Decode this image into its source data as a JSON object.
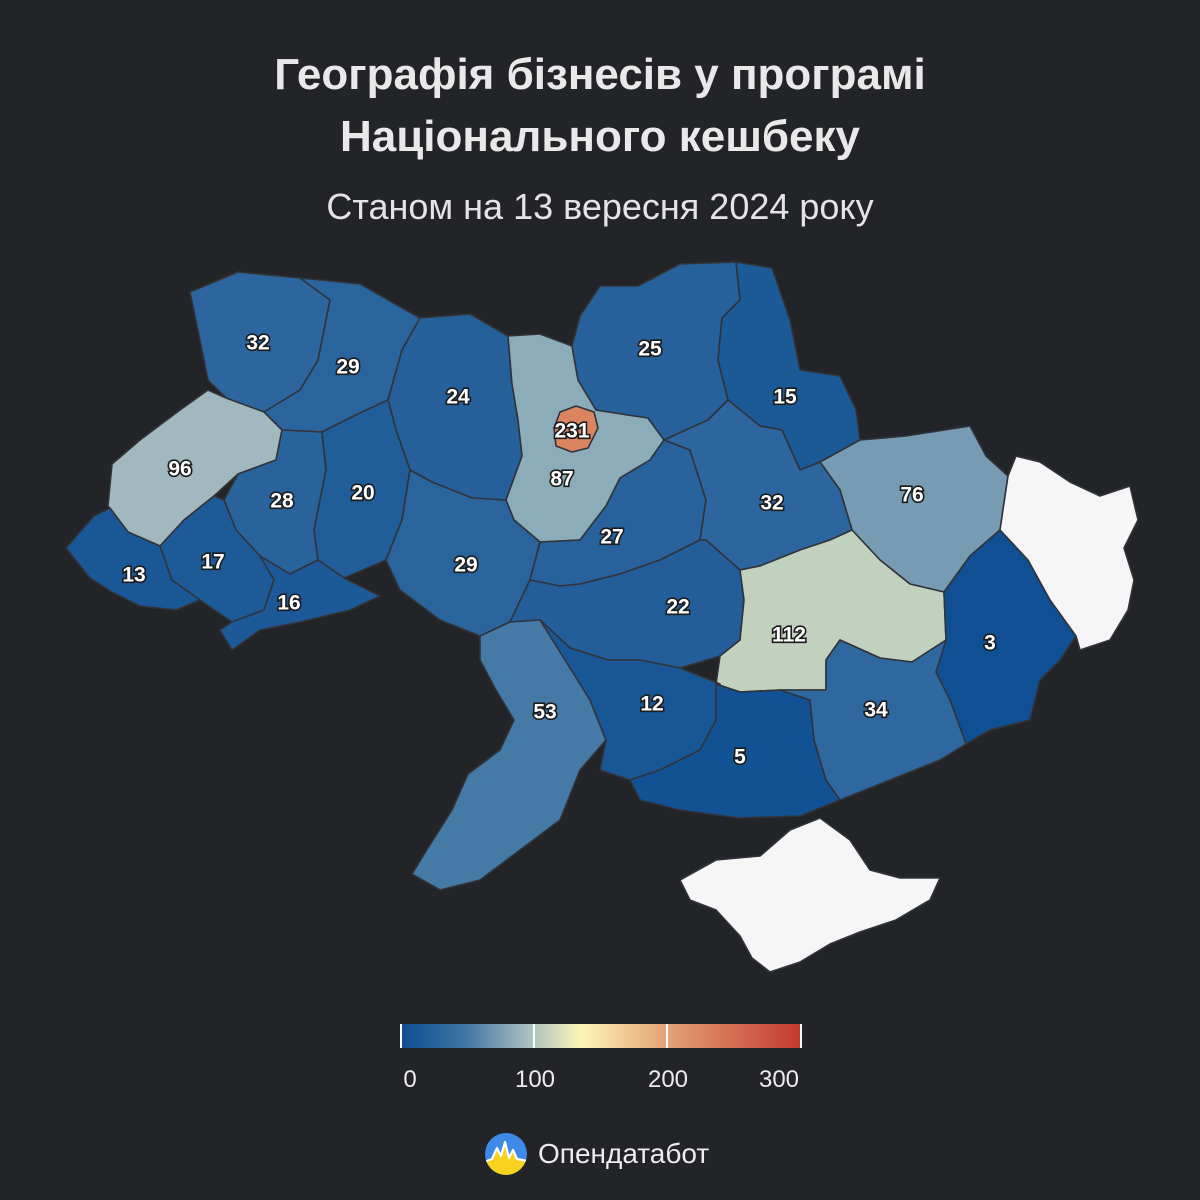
{
  "header": {
    "title_line1": "Географія бізнесів у програмі",
    "title_line2": "Національного кешбеку",
    "subtitle": "Станом на 13 вересня 2024 року"
  },
  "map": {
    "regions": [
      {
        "name": "volyn",
        "value": 32,
        "label": "32"
      },
      {
        "name": "rivne",
        "value": 29,
        "label": "29"
      },
      {
        "name": "zhytomyr",
        "value": 24,
        "label": "24"
      },
      {
        "name": "kyiv-oblast",
        "value": 87,
        "label": "87"
      },
      {
        "name": "kyiv-city",
        "value": 231,
        "label": "231"
      },
      {
        "name": "chernihiv",
        "value": 25,
        "label": "25"
      },
      {
        "name": "sumy",
        "value": 15,
        "label": "15"
      },
      {
        "name": "kharkiv",
        "value": 76,
        "label": "76"
      },
      {
        "name": "lviv",
        "value": 96,
        "label": "96"
      },
      {
        "name": "ternopil",
        "value": 28,
        "label": "28"
      },
      {
        "name": "khmelnytskyi",
        "value": 20,
        "label": "20"
      },
      {
        "name": "vinnytsia",
        "value": 29,
        "label": "29"
      },
      {
        "name": "cherkasy",
        "value": 27,
        "label": "27"
      },
      {
        "name": "poltava",
        "value": 32,
        "label": "32"
      },
      {
        "name": "zakarpattia",
        "value": 13,
        "label": "13"
      },
      {
        "name": "ivano-frankivsk",
        "value": 17,
        "label": "17"
      },
      {
        "name": "chernivtsi",
        "value": 16,
        "label": "16"
      },
      {
        "name": "kirovohrad",
        "value": 22,
        "label": "22"
      },
      {
        "name": "dnipropetrovsk",
        "value": 112,
        "label": "112"
      },
      {
        "name": "donetsk",
        "value": 3,
        "label": "3"
      },
      {
        "name": "odesa",
        "value": 53,
        "label": "53"
      },
      {
        "name": "mykolaiv",
        "value": 12,
        "label": "12"
      },
      {
        "name": "kherson",
        "value": 5,
        "label": "5"
      },
      {
        "name": "zaporizhzhia",
        "value": 34,
        "label": "34"
      },
      {
        "name": "luhansk",
        "value": null,
        "label": ""
      },
      {
        "name": "crimea",
        "value": null,
        "label": ""
      }
    ],
    "no_data_color": "#f6f6f6",
    "background_color": "#222428"
  },
  "legend": {
    "min": 0,
    "max": 300,
    "ticks": [
      "0",
      "100",
      "200",
      "300"
    ],
    "tick_values": [
      0,
      100,
      200,
      300
    ],
    "colors": [
      "#0d4d92",
      "#3f74a4",
      "#a9bfc0",
      "#fdf6b8",
      "#e5a679",
      "#c4382d"
    ]
  },
  "brand": {
    "name": "Опендатабот",
    "logo_icon": "opendatabot-logo-icon"
  }
}
